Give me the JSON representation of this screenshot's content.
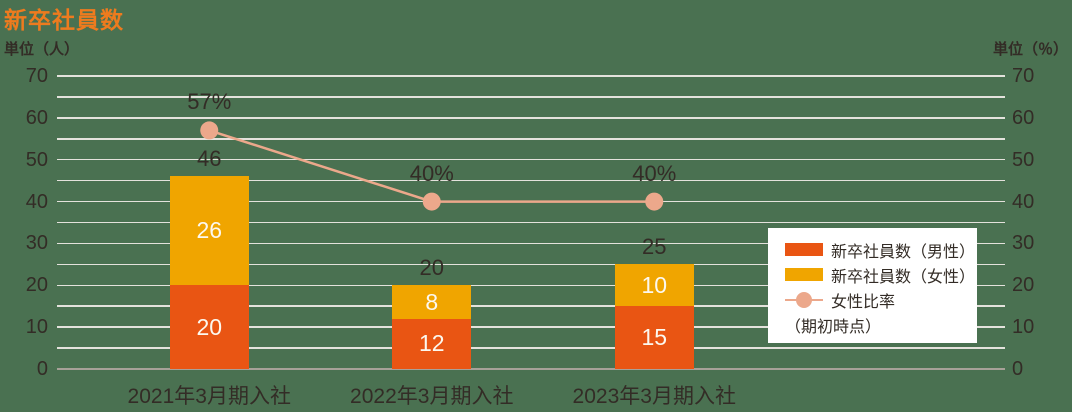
{
  "title": "新卒社員数",
  "left_axis_unit": "単位（人）",
  "right_axis_unit": "単位（％）",
  "colors": {
    "background": "#4A7151",
    "male_bar": "#E95513",
    "female_bar": "#F0A500",
    "line": "#ECA88B",
    "title": "#EE7B1E",
    "dark_text": "#332C26",
    "grid_line": "#E4E2DC",
    "baseline": "#A7A198",
    "bar_value_text": "#FCF8EF",
    "legend_bg": "#FFFFFF"
  },
  "chart_data": {
    "type": "bar",
    "subtype": "stacked-bar-with-line",
    "categories": [
      "2021年3月期入社",
      "2022年3月期入社",
      "2023年3月期入社"
    ],
    "series": [
      {
        "name": "新卒社員数（男性）",
        "type": "bar",
        "values": [
          20,
          12,
          15
        ]
      },
      {
        "name": "新卒社員数（女性）",
        "type": "bar",
        "values": [
          26,
          8,
          10
        ]
      },
      {
        "name": "女性比率",
        "type": "line",
        "values": [
          57,
          40,
          40
        ],
        "unit": "%"
      }
    ],
    "totals": [
      46,
      20,
      25
    ],
    "total_labels": [
      "46",
      "20",
      "25"
    ],
    "segment_labels": {
      "male": [
        "20",
        "12",
        "15"
      ],
      "female": [
        "26",
        "8",
        "10"
      ]
    },
    "line_labels": [
      "57%",
      "40%",
      "40%"
    ],
    "left_axis": {
      "label": "単位（人）",
      "min": 0,
      "max": 70,
      "major_ticks": [
        0,
        10,
        20,
        30,
        40,
        50,
        60,
        70
      ],
      "minor_step": 5
    },
    "right_axis": {
      "label": "単位（％）",
      "min": 0,
      "max": 70,
      "major_ticks": [
        0,
        10,
        20,
        30,
        40,
        50,
        60,
        70
      ]
    },
    "grid": true,
    "legend_position": "right-middle"
  },
  "legend": {
    "items": [
      {
        "label": "新卒社員数（男性）",
        "swatch": "male_bar",
        "shape": "rect"
      },
      {
        "label": "新卒社員数（女性）",
        "swatch": "female_bar",
        "shape": "rect"
      },
      {
        "label": "女性比率",
        "swatch": "line",
        "shape": "line-dot"
      }
    ],
    "note": "（期初時点）"
  }
}
